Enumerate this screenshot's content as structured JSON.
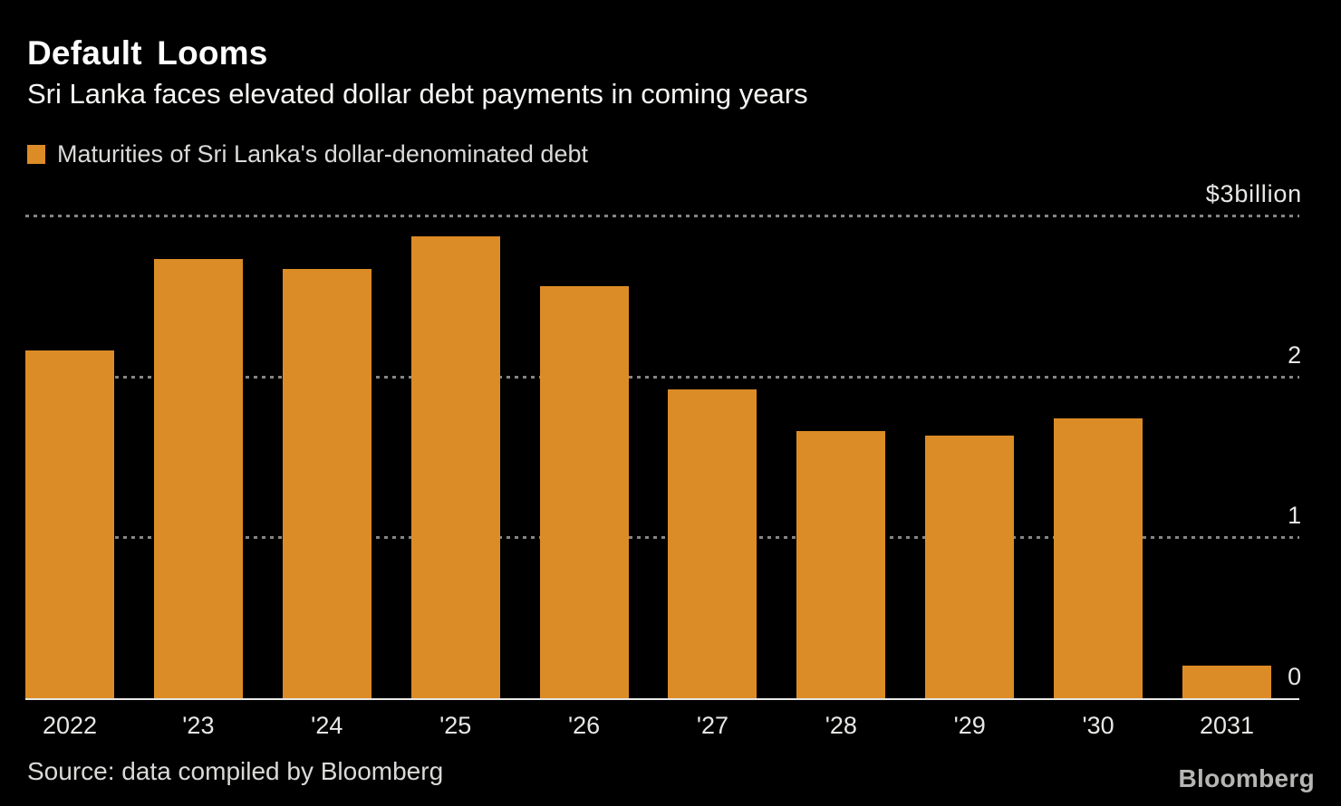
{
  "header": {
    "title": "Default Looms",
    "subtitle": "Sri Lanka faces elevated dollar debt payments in coming years"
  },
  "legend": {
    "label": "Maturities of Sri Lanka's dollar-denominated debt",
    "swatch_color": "#dc8c26"
  },
  "chart_data": {
    "type": "bar",
    "title": "Default Looms",
    "subtitle": "Sri Lanka faces elevated dollar debt payments in coming years",
    "series_name": "Maturities of Sri Lanka's dollar-denominated debt",
    "categories": [
      "2022",
      "'23",
      "'24",
      "'25",
      "'26",
      "'27",
      "'28",
      "'29",
      "'30",
      "2031"
    ],
    "values": [
      2.16,
      2.73,
      2.67,
      2.87,
      2.56,
      1.92,
      1.66,
      1.63,
      1.74,
      0.2
    ],
    "unit": "USD billions",
    "xlabel": "",
    "ylabel": "$ billion",
    "ylim": [
      0,
      3
    ],
    "yticks": [
      {
        "value": 3,
        "label": "$3billion"
      },
      {
        "value": 2,
        "label": "2"
      },
      {
        "value": 1,
        "label": "1"
      },
      {
        "value": 0,
        "label": "0"
      }
    ],
    "grid": "horizontal-dashed",
    "legend_position": "top-left",
    "bar_color": "#dc8c26",
    "background_color": "#000000",
    "gridline_color": "#858583",
    "axis_line_color": "#e8e8e6",
    "text_color": "#ffffff"
  },
  "footer": {
    "source": "Source: data compiled by Bloomberg",
    "logo": "Bloomberg"
  }
}
